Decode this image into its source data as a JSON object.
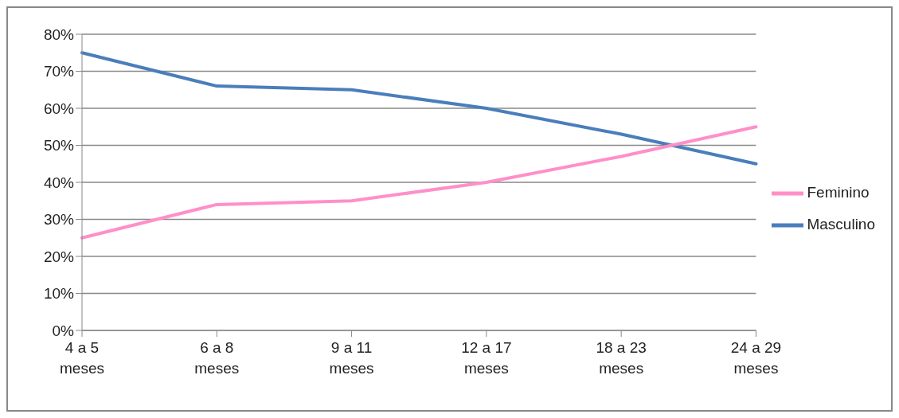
{
  "chart_data": {
    "type": "line",
    "categories": [
      "4 a 5 meses",
      "6 a 8 meses",
      "9 a 11 meses",
      "12 a 17 meses",
      "18 a 23 meses",
      "24 a 29 meses"
    ],
    "series": [
      {
        "name": "Masculino",
        "color": "#4a7ebb",
        "values": [
          75,
          66,
          65,
          60,
          53,
          45
        ]
      },
      {
        "name": "Feminino",
        "color": "#ff8fc8",
        "values": [
          25,
          34,
          35,
          40,
          47,
          55
        ]
      }
    ],
    "ylim": [
      0,
      80
    ],
    "yticks": [
      {
        "value": 0,
        "label": "0%"
      },
      {
        "value": 10,
        "label": "10%"
      },
      {
        "value": 20,
        "label": "20%"
      },
      {
        "value": 30,
        "label": "30%"
      },
      {
        "value": 40,
        "label": "40%"
      },
      {
        "value": 50,
        "label": "50%"
      },
      {
        "value": 60,
        "label": "60%"
      },
      {
        "value": 70,
        "label": "70%"
      },
      {
        "value": 80,
        "label": "80%"
      }
    ],
    "grid": "y",
    "legend": "right",
    "marker": "none",
    "line_style": "solid"
  }
}
